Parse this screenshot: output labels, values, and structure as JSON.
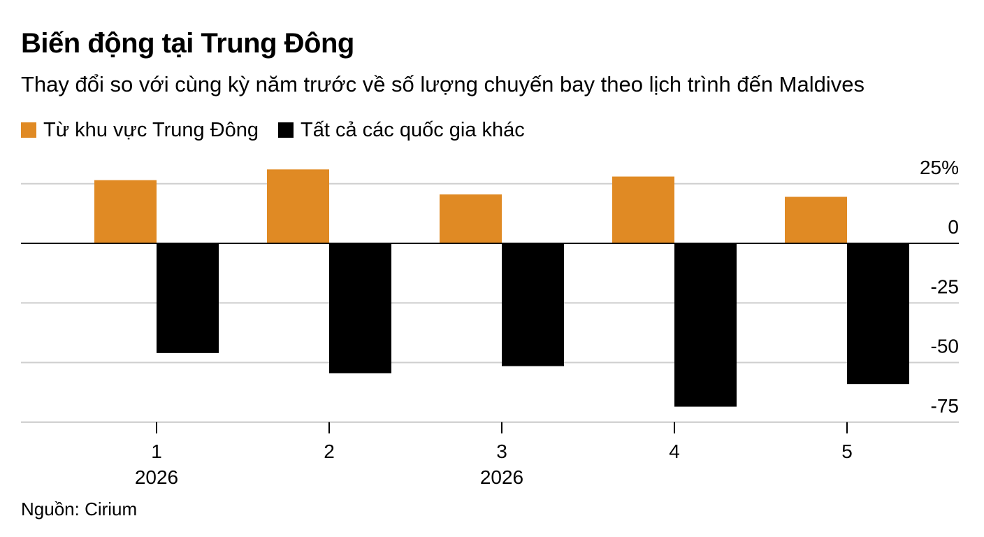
{
  "chart_data": {
    "type": "bar",
    "title": "Biến động tại Trung Đông",
    "subtitle": "Thay đổi so với cùng kỳ năm trước về số lượng chuyến bay theo lịch trình đến Maldives",
    "categories": [
      "1",
      "2",
      "3",
      "4",
      "5"
    ],
    "category_sublabels": [
      "2026",
      "",
      "2026",
      "",
      ""
    ],
    "series": [
      {
        "name": "Từ khu vực Trung Đông",
        "color": "#e08a24",
        "values": [
          26.5,
          31,
          20.5,
          28,
          19.5
        ]
      },
      {
        "name": "Tất cả các quốc gia khác",
        "color": "#000000",
        "values": [
          -46,
          -54.5,
          -51.5,
          -68.5,
          -59
        ]
      }
    ],
    "y_ticks": [
      25,
      0,
      -25,
      -50,
      -75
    ],
    "y_tick_labels": [
      "25%",
      "0",
      "-25",
      "-50",
      "-75"
    ],
    "ylim": [
      -75,
      31
    ],
    "y_axis_position": "right",
    "grid": true,
    "legend_position": "top-left",
    "xlabel": "",
    "ylabel": ""
  },
  "source": "Nguồn: Cirium"
}
